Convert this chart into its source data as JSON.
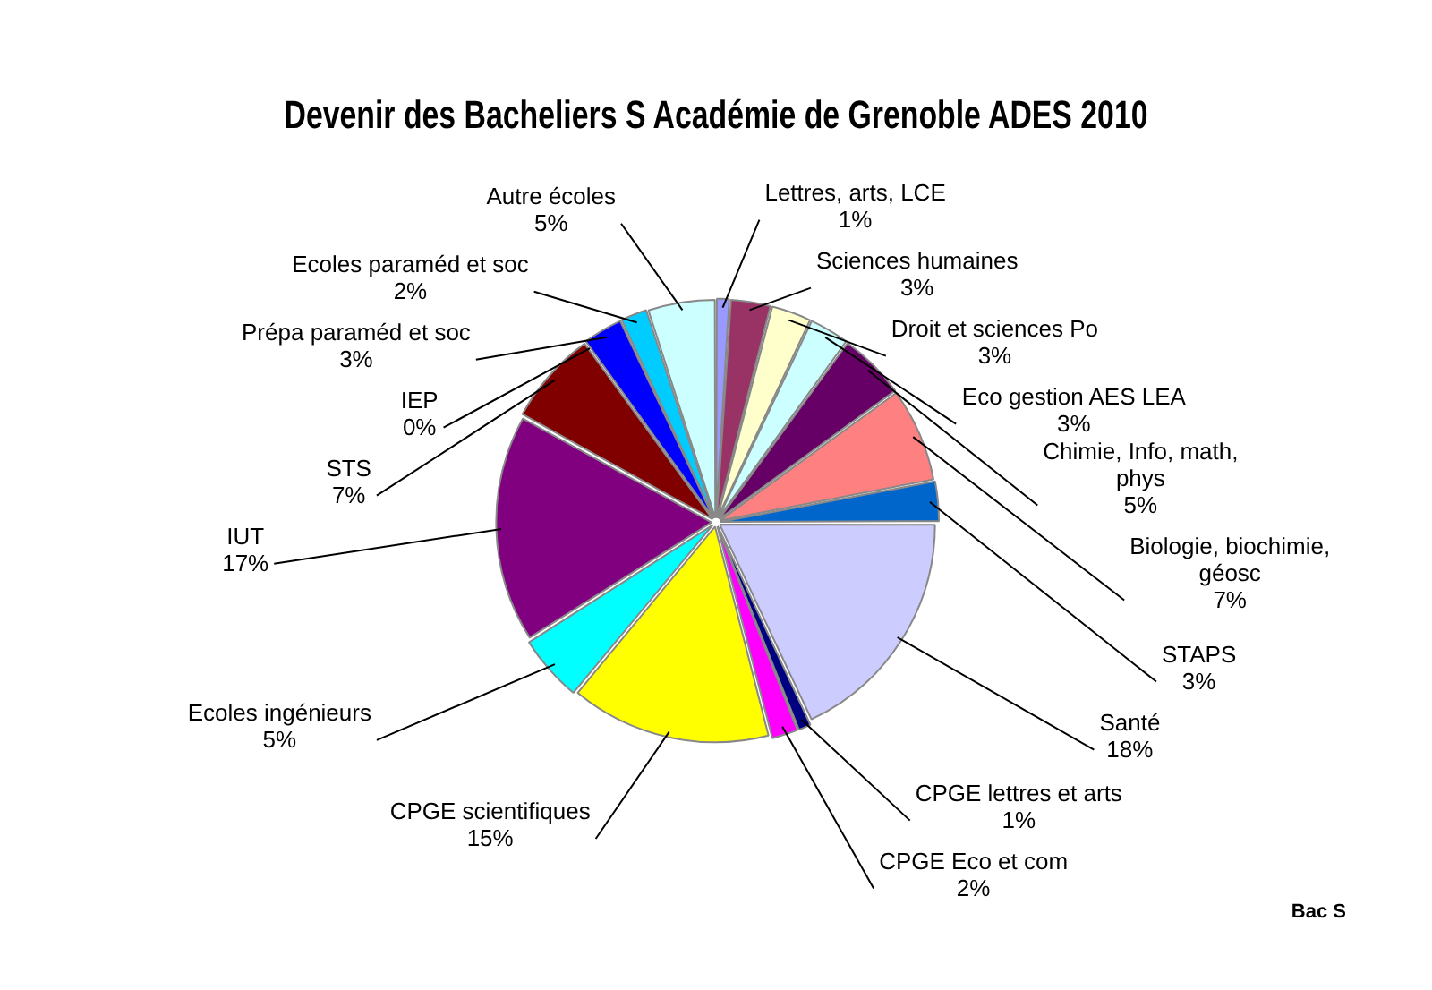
{
  "chart_data": {
    "type": "pie",
    "title": "Devenir des Bacheliers S Académie de Grenoble ADES 2010",
    "categories": [
      "Lettres, arts, LCE",
      "Sciences humaines",
      "Droit et sciences Po",
      "Eco gestion AES LEA",
      "Chimie, Info, math, phys",
      "Biologie, biochimie, géosc",
      "STAPS",
      "Santé",
      "CPGE lettres et arts",
      "CPGE Eco et com",
      "CPGE scientifiques",
      "Ecoles ingénieurs",
      "IUT",
      "STS",
      "IEP",
      "Prépa paraméd et soc",
      "Ecoles paraméd et soc",
      "Autre écoles"
    ],
    "values": [
      1,
      3,
      3,
      3,
      5,
      7,
      3,
      18,
      1,
      2,
      15,
      5,
      17,
      7,
      0,
      3,
      2,
      5
    ],
    "value_labels": [
      "1%",
      "3%",
      "3%",
      "3%",
      "5%",
      "7%",
      "3%",
      "18%",
      "1%",
      "2%",
      "15%",
      "5%",
      "17%",
      "7%",
      "0%",
      "3%",
      "2%",
      "5%"
    ],
    "colors": [
      "#9999ff",
      "#993366",
      "#ffffcc",
      "#ccffff",
      "#660066",
      "#ff8080",
      "#0066cc",
      "#ccccff",
      "#000080",
      "#ff00ff",
      "#ffff00",
      "#00ffff",
      "#800080",
      "#800000",
      "#008080",
      "#0000ff",
      "#00ccff",
      "#ccffff"
    ],
    "annotations": [
      "Bac S"
    ],
    "legend": false
  }
}
